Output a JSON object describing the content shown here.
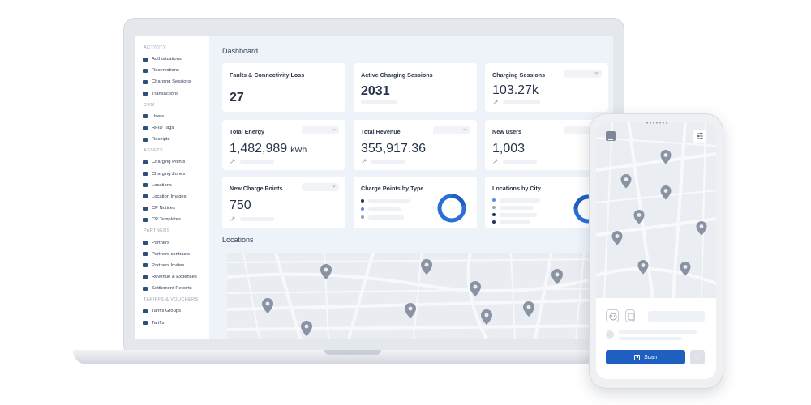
{
  "sidebar": {
    "sections": [
      {
        "title": "ACTIVITY",
        "items": [
          {
            "label": "Authorizations",
            "icon": "lock-icon"
          },
          {
            "label": "Reservations",
            "icon": "calendar-icon"
          },
          {
            "label": "Charging Sessions",
            "icon": "bolt-icon"
          },
          {
            "label": "Transactions",
            "icon": "transfer-icon"
          }
        ]
      },
      {
        "title": "CRM",
        "items": [
          {
            "label": "Users",
            "icon": "users-icon"
          },
          {
            "label": "RFID Tags",
            "icon": "card-icon"
          },
          {
            "label": "Receipts",
            "icon": "receipt-icon"
          }
        ]
      },
      {
        "title": "ASSETS",
        "items": [
          {
            "label": "Charging Points",
            "icon": "plug-icon"
          },
          {
            "label": "Charging Zones",
            "icon": "pin-icon"
          },
          {
            "label": "Locations",
            "icon": "map-icon"
          },
          {
            "label": "Location Images",
            "icon": "image-icon"
          },
          {
            "label": "CP Notices",
            "icon": "bell-icon"
          },
          {
            "label": "CP Templates",
            "icon": "template-icon"
          }
        ]
      },
      {
        "title": "PARTNERS",
        "items": [
          {
            "label": "Partners",
            "icon": "person-icon"
          },
          {
            "label": "Partners contracts",
            "icon": "contract-icon"
          },
          {
            "label": "Partners Invites",
            "icon": "mail-icon"
          },
          {
            "label": "Revenue & Expenses",
            "icon": "money-icon"
          },
          {
            "label": "Settlement Reports",
            "icon": "report-icon"
          }
        ]
      },
      {
        "title": "TARIFFS & VOUCHERS",
        "items": [
          {
            "label": "Tariffs Groups",
            "icon": "layers-icon"
          },
          {
            "label": "Tariffs",
            "icon": "tag-icon"
          }
        ]
      }
    ]
  },
  "dashboard": {
    "title": "Dashboard",
    "cards": {
      "faults": {
        "title": "Faults & Connectivity Loss",
        "value": "27"
      },
      "active_sessions": {
        "title": "Active Charging Sessions",
        "value": "2031"
      },
      "charging_sessions": {
        "title": "Charging Sessions",
        "value": "103.27k"
      },
      "total_energy": {
        "title": "Total Energy",
        "value": "1,482,989",
        "unit": "kWh"
      },
      "total_revenue": {
        "title": "Total Revenue",
        "value": "355,917.36"
      },
      "new_users": {
        "title": "New users",
        "value": "1,003"
      },
      "new_charge_points": {
        "title": "New Charge Points",
        "value": "750"
      },
      "cp_by_type": {
        "title": "Charge Points by Type"
      },
      "locations_by_city": {
        "title": "Locations by City"
      }
    },
    "locations_title": "Locations"
  },
  "phone": {
    "scan_label": "Scan"
  },
  "colors": {
    "accent_blue": "#1f5fbf",
    "donut_primary": "#1f5fbf",
    "donut_secondary": "#2b6fd4",
    "legend_dark": "#1f3557",
    "legend_mid": "#5b8fd6",
    "legend_light": "#9aa3b2",
    "map_pin": "#8a93a3",
    "map_road": "#f7f8fa"
  }
}
